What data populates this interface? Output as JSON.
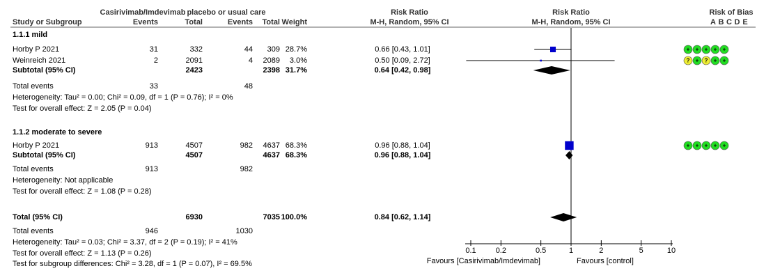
{
  "header": {
    "exp_group": "Casirivimab/Imdevimab",
    "ctrl_group": "placebo or usual care",
    "rr_title_left": "Risk Ratio",
    "rr_title_right": "Risk Ratio",
    "bias_title": "Risk of Bias"
  },
  "columns": {
    "study": "Study or Subgroup",
    "exp_events": "Events",
    "exp_total": "Total",
    "ctrl_events": "Events",
    "ctrl_total": "Total",
    "weight": "Weight",
    "rr_method_left": "M-H, Random, 95% CI",
    "rr_method_right": "M-H, Random, 95% CI",
    "bias_domains": [
      "A",
      "B",
      "C",
      "D",
      "E"
    ]
  },
  "bias_colors": {
    "+": "#22dd22",
    "?": "#eeee33"
  },
  "subgroups": [
    {
      "title": "1.1.1 mild",
      "studies": [
        {
          "name": "Horby P 2021",
          "exp_events": 31,
          "exp_total": 332,
          "ctrl_events": 44,
          "ctrl_total": 309,
          "weight": 28.7,
          "weight_label": "28.7%",
          "rr_label": "0.66 [0.43, 1.01]",
          "rr": 0.66,
          "ci": [
            0.43,
            1.01
          ],
          "bias": [
            "+",
            "+",
            "+",
            "+",
            "+"
          ]
        },
        {
          "name": "Weinreich 2021",
          "exp_events": 2,
          "exp_total": 2091,
          "ctrl_events": 4,
          "ctrl_total": 2089,
          "weight": 3.0,
          "weight_label": "3.0%",
          "rr_label": "0.50 [0.09, 2.72]",
          "rr": 0.5,
          "ci": [
            0.09,
            2.72
          ],
          "bias": [
            "?",
            "+",
            "?",
            "+",
            "+"
          ]
        }
      ],
      "subtotal": {
        "label": "Subtotal (95% CI)",
        "exp_total": 2423,
        "ctrl_total": 2398,
        "weight": 31.7,
        "weight_label": "31.7%",
        "rr_label": "0.64 [0.42, 0.98]",
        "rr": 0.64,
        "ci": [
          0.42,
          0.98
        ]
      },
      "total_events": {
        "label": "Total events",
        "exp": 33,
        "ctrl": 48
      },
      "heterogeneity": "Heterogeneity: Tau² = 0.00; Chi² = 0.09, df = 1 (P = 0.76); I² = 0%",
      "overall_effect": "Test for overall effect: Z = 2.05 (P = 0.04)"
    },
    {
      "title": "1.1.2 moderate to severe",
      "studies": [
        {
          "name": "Horby P 2021",
          "exp_events": 913,
          "exp_total": 4507,
          "ctrl_events": 982,
          "ctrl_total": 4637,
          "weight": 68.3,
          "weight_label": "68.3%",
          "rr_label": "0.96 [0.88, 1.04]",
          "rr": 0.96,
          "ci": [
            0.88,
            1.04
          ],
          "bias": [
            "+",
            "+",
            "+",
            "+",
            "+"
          ]
        }
      ],
      "subtotal": {
        "label": "Subtotal (95% CI)",
        "exp_total": 4507,
        "ctrl_total": 4637,
        "weight": 68.3,
        "weight_label": "68.3%",
        "rr_label": "0.96 [0.88, 1.04]",
        "rr": 0.96,
        "ci": [
          0.88,
          1.04
        ]
      },
      "total_events": {
        "label": "Total events",
        "exp": 913,
        "ctrl": 982
      },
      "heterogeneity": "Heterogeneity: Not applicable",
      "overall_effect": "Test for overall effect: Z = 1.08 (P = 0.28)"
    }
  ],
  "total": {
    "label": "Total (95% CI)",
    "exp_total": 6930,
    "ctrl_total": 7035,
    "weight": 100.0,
    "weight_label": "100.0%",
    "rr_label": "0.84 [0.62, 1.14]",
    "rr": 0.84,
    "ci": [
      0.62,
      1.14
    ]
  },
  "total_events": {
    "label": "Total events",
    "exp": 946,
    "ctrl": 1030
  },
  "heterogeneity": "Heterogeneity: Tau² = 0.03; Chi² = 3.37, df = 2 (P = 0.19); I² = 41%",
  "overall_effect": "Test for overall effect: Z = 1.13 (P = 0.26)",
  "subgroup_differences": "Test for subgroup differences: Chi² = 3.28, df = 1 (P = 0.07), I² = 69.5%",
  "forest_axis": {
    "log": true,
    "xlim": [
      0.1,
      10
    ],
    "xticks": [
      0.1,
      0.2,
      0.5,
      1,
      2,
      5,
      10
    ],
    "reference_line": 1,
    "left_label": "Favours [Casirivimab/Imdevimab]",
    "right_label": "Favours [control]",
    "square_color": "#0000cc"
  }
}
